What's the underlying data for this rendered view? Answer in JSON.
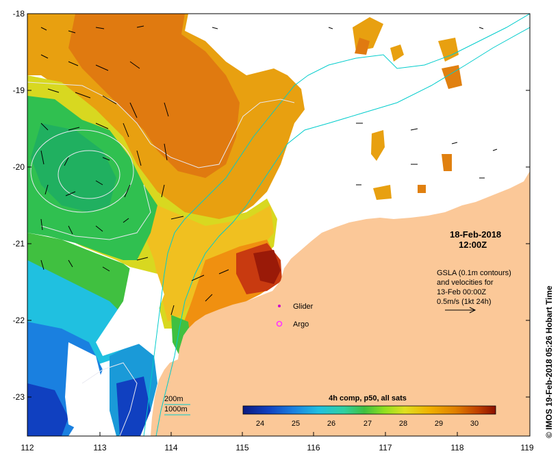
{
  "map": {
    "lon_ticks": [
      "112",
      "113",
      "114",
      "115",
      "116",
      "117",
      "118",
      "119"
    ],
    "lat_ticks": [
      "-18",
      "-19",
      "-20",
      "-21",
      "-22",
      "-23"
    ]
  },
  "annotation": {
    "date": "18-Feb-2018",
    "time": "12:00Z",
    "gsla_line1": "GSLA (0.1m contours)",
    "gsla_line2": "and velocities for",
    "gsla_line3": "13-Feb 00:00Z",
    "gsla_line4": "0.5m/s (1kt 24h)"
  },
  "legend": {
    "glider": "Glider",
    "argo": "Argo",
    "contour_200": "200m",
    "contour_1000": "1000m",
    "glider_color": "#cc00cc",
    "argo_color": "#ff33ff",
    "bathy_color": "#00cccc"
  },
  "colorbar": {
    "title": "4h comp, p50, all sats",
    "ticks": [
      "24",
      "25",
      "26",
      "27",
      "28",
      "29",
      "30"
    ],
    "min": 23.5,
    "max": 30.6,
    "colors": [
      "#0a1a80",
      "#1040c0",
      "#1a80e0",
      "#20c0e0",
      "#30d0a0",
      "#40c040",
      "#90e020",
      "#e0e020",
      "#f0b000",
      "#e08000",
      "#c04000",
      "#8a1000"
    ]
  },
  "credit": "© IMOS 19-Feb-2018 05:26 Hobart Time"
}
